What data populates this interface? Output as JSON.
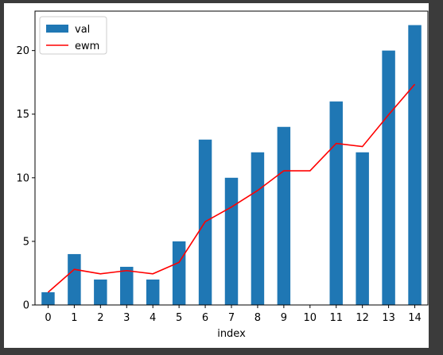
{
  "chart_data": {
    "type": "bar",
    "xlabel": "index",
    "ylabel": "",
    "title": "",
    "categories": [
      "0",
      "1",
      "2",
      "3",
      "4",
      "5",
      "6",
      "7",
      "8",
      "9",
      "10",
      "11",
      "12",
      "13",
      "14"
    ],
    "series": [
      {
        "name": "val",
        "type": "bar",
        "color": "#1f77b4",
        "values": [
          1,
          4,
          2,
          3,
          2,
          5,
          13,
          10,
          12,
          14,
          0,
          16,
          12,
          20,
          22
        ]
      },
      {
        "name": "ewm",
        "type": "line",
        "color": "#ff0000",
        "values": [
          1.0,
          2.8,
          2.45,
          2.7,
          2.45,
          3.35,
          6.55,
          7.7,
          9.0,
          10.55,
          10.55,
          12.7,
          12.45,
          14.95,
          17.35
        ]
      }
    ],
    "ylim": [
      0,
      23.1
    ],
    "yticks": [
      0,
      5,
      10,
      15,
      20
    ],
    "legend": {
      "position": "top-left"
    },
    "grid": false
  }
}
